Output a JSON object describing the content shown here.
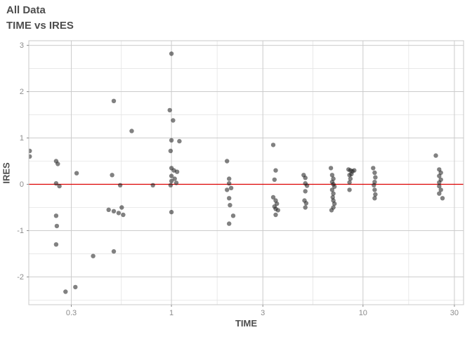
{
  "colors": {
    "background": "#ffffff",
    "title": "#4d4d4d",
    "axis_title": "#4d4d4d",
    "tick_label": "#8c8c8c",
    "grid_major": "#cccccc",
    "grid_minor": "#e4e4e4",
    "panel_border": "#c9c9c9",
    "point": "#1a1a1a",
    "reference_line": "#dd0000"
  },
  "chart_data": {
    "type": "scatter",
    "title": "All Data",
    "subtitle": "TIME vs IRES",
    "xlabel": "TIME",
    "ylabel": "IRES",
    "x_scale": "log10",
    "xlim": [
      0.18,
      33.5
    ],
    "ylim": [
      -2.6,
      3.1
    ],
    "grid": true,
    "x_ticks": [
      {
        "value": 0.3,
        "label": "0.3"
      },
      {
        "value": 1,
        "label": "1"
      },
      {
        "value": 3,
        "label": "3"
      },
      {
        "value": 10,
        "label": "10"
      },
      {
        "value": 30,
        "label": "30"
      }
    ],
    "x_minor": [
      0.5477,
      1.7321,
      5.4772,
      17.3205
    ],
    "y_ticks": [
      {
        "value": -2,
        "label": "-2"
      },
      {
        "value": -1,
        "label": "-1"
      },
      {
        "value": 0,
        "label": "0"
      },
      {
        "value": 1,
        "label": "1"
      },
      {
        "value": 2,
        "label": "2"
      },
      {
        "value": 3,
        "label": "3"
      }
    ],
    "y_minor": [
      -2.5,
      -1.5,
      -0.5,
      0.5,
      1.5,
      2.5
    ],
    "reference_line": {
      "y": 0,
      "color": "#dd0000"
    },
    "point_style": {
      "radius": 3.2,
      "opacity": 0.55
    },
    "points": [
      [
        0.182,
        0.72
      ],
      [
        0.182,
        0.6
      ],
      [
        0.25,
        0.5
      ],
      [
        0.255,
        0.44
      ],
      [
        0.25,
        0.02
      ],
      [
        0.26,
        -0.04
      ],
      [
        0.25,
        -0.68
      ],
      [
        0.252,
        -0.9
      ],
      [
        0.25,
        -1.3
      ],
      [
        0.28,
        -2.32
      ],
      [
        0.315,
        -2.22
      ],
      [
        0.32,
        0.24
      ],
      [
        0.39,
        -1.55
      ],
      [
        0.5,
        1.8
      ],
      [
        0.49,
        0.2
      ],
      [
        0.47,
        -0.55
      ],
      [
        0.5,
        -0.58
      ],
      [
        0.53,
        -0.62
      ],
      [
        0.55,
        -0.5
      ],
      [
        0.56,
        -0.66
      ],
      [
        0.5,
        -1.45
      ],
      [
        0.54,
        -0.02
      ],
      [
        0.62,
        1.15
      ],
      [
        0.8,
        -0.02
      ],
      [
        1.0,
        2.82
      ],
      [
        0.98,
        1.6
      ],
      [
        1.02,
        1.38
      ],
      [
        1.0,
        0.95
      ],
      [
        1.1,
        0.93
      ],
      [
        0.99,
        0.72
      ],
      [
        1.0,
        0.35
      ],
      [
        1.03,
        0.3
      ],
      [
        1.07,
        0.27
      ],
      [
        1.0,
        0.18
      ],
      [
        1.04,
        0.12
      ],
      [
        1.0,
        0.07
      ],
      [
        1.06,
        0.03
      ],
      [
        0.99,
        -0.02
      ],
      [
        1.0,
        -0.6
      ],
      [
        1.95,
        0.5
      ],
      [
        2.0,
        0.12
      ],
      [
        2.0,
        0.02
      ],
      [
        2.05,
        -0.08
      ],
      [
        1.95,
        -0.12
      ],
      [
        2.0,
        -0.3
      ],
      [
        2.02,
        -0.45
      ],
      [
        2.1,
        -0.68
      ],
      [
        2.0,
        -0.85
      ],
      [
        3.4,
        0.85
      ],
      [
        3.5,
        0.3
      ],
      [
        3.45,
        0.1
      ],
      [
        3.4,
        -0.28
      ],
      [
        3.5,
        -0.35
      ],
      [
        3.55,
        -0.42
      ],
      [
        3.45,
        -0.48
      ],
      [
        3.5,
        -0.53
      ],
      [
        3.6,
        -0.56
      ],
      [
        3.5,
        -0.66
      ],
      [
        4.9,
        0.2
      ],
      [
        5.0,
        0.14
      ],
      [
        5.0,
        0.02
      ],
      [
        5.1,
        -0.03
      ],
      [
        5.0,
        -0.15
      ],
      [
        4.95,
        -0.35
      ],
      [
        5.05,
        -0.41
      ],
      [
        5.0,
        -0.5
      ],
      [
        6.8,
        0.35
      ],
      [
        6.9,
        0.2
      ],
      [
        7.0,
        0.12
      ],
      [
        6.9,
        0.05
      ],
      [
        7.0,
        0.0
      ],
      [
        7.1,
        -0.05
      ],
      [
        6.9,
        -0.12
      ],
      [
        7.0,
        -0.2
      ],
      [
        6.95,
        -0.28
      ],
      [
        7.0,
        -0.35
      ],
      [
        7.1,
        -0.42
      ],
      [
        7.0,
        -0.5
      ],
      [
        6.85,
        -0.56
      ],
      [
        8.4,
        0.32
      ],
      [
        8.6,
        0.3
      ],
      [
        8.8,
        0.28
      ],
      [
        8.7,
        0.22
      ],
      [
        8.5,
        0.2
      ],
      [
        8.6,
        0.12
      ],
      [
        8.5,
        0.04
      ],
      [
        8.5,
        -0.12
      ],
      [
        9.0,
        0.3
      ],
      [
        11.3,
        0.35
      ],
      [
        11.5,
        0.25
      ],
      [
        11.6,
        0.15
      ],
      [
        11.5,
        0.05
      ],
      [
        11.4,
        -0.02
      ],
      [
        11.5,
        -0.12
      ],
      [
        11.6,
        -0.22
      ],
      [
        11.5,
        -0.3
      ],
      [
        24.0,
        0.62
      ],
      [
        25.0,
        0.32
      ],
      [
        25.5,
        0.25
      ],
      [
        25.0,
        0.18
      ],
      [
        25.5,
        0.1
      ],
      [
        25.0,
        0.04
      ],
      [
        25.0,
        -0.04
      ],
      [
        25.5,
        -0.12
      ],
      [
        25.0,
        -0.2
      ],
      [
        26.0,
        -0.3
      ]
    ]
  }
}
